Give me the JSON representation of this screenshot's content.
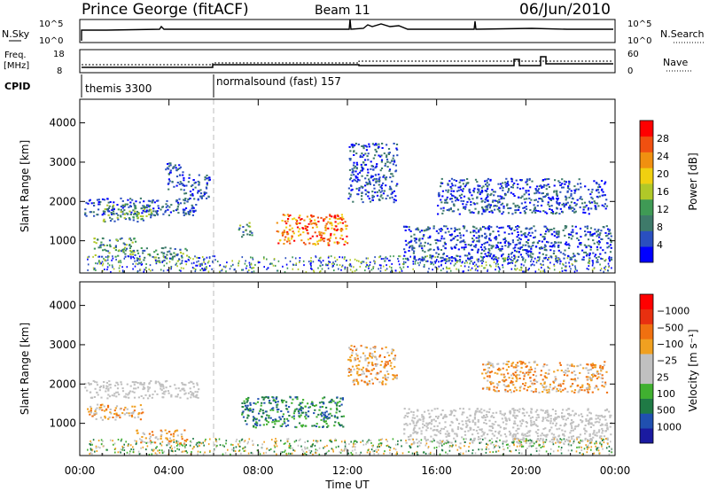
{
  "header": {
    "station": "Prince George (fitACF)",
    "beam": "Beam 11",
    "date": "06/Jun/2010"
  },
  "panels": {
    "nsky": {
      "left_label": "N.Sky",
      "right_label": "N.Search",
      "left_ticks": [
        "10^5",
        "10^0"
      ],
      "right_ticks": [
        "10^5",
        "10^0"
      ]
    },
    "freq": {
      "left_label_1": "Freq.",
      "left_label_2": "[MHz]",
      "right_label": "Nave",
      "left_ticks": [
        "18",
        "8"
      ],
      "right_ticks": [
        "60",
        "0"
      ]
    },
    "cpid": {
      "label": "CPID",
      "segments": [
        {
          "label": "themis 3300",
          "start_hour": 0.0
        },
        {
          "label": "normalsound (fast) 157",
          "start_hour": 6.0
        }
      ]
    }
  },
  "chart_data": [
    {
      "type": "heatmap",
      "name": "power",
      "ylabel": "Slant Range [km]",
      "ylim": [
        180,
        4600
      ],
      "yticks": [
        1000,
        2000,
        3000,
        4000
      ],
      "xlim": [
        0,
        24
      ],
      "colorbar_label": "Power [dB]",
      "colorbar_ticks": [
        4,
        8,
        12,
        16,
        20,
        24,
        28
      ],
      "colorbar_colors": [
        "#0000ff",
        "#2a4fbf",
        "#3e7a6a",
        "#3f9a55",
        "#b0c828",
        "#f0d010",
        "#f09010",
        "#f05010",
        "#ff0000"
      ],
      "features": [
        {
          "x": [
            0.2,
            5.3
          ],
          "y": [
            1650,
            2100
          ],
          "level": "low"
        },
        {
          "x": [
            1.0,
            3.2
          ],
          "y": [
            1500,
            1950
          ],
          "level": "mid"
        },
        {
          "x": [
            0.6,
            2.5
          ],
          "y": [
            600,
            1100
          ],
          "level": "mid"
        },
        {
          "x": [
            2.5,
            4.8
          ],
          "y": [
            500,
            850
          ],
          "level": "mid"
        },
        {
          "x": [
            4.6,
            5.8
          ],
          "y": [
            2050,
            2700
          ],
          "level": "low"
        },
        {
          "x": [
            3.8,
            4.6
          ],
          "y": [
            2300,
            3000
          ],
          "level": "low"
        },
        {
          "x": [
            7.1,
            7.7
          ],
          "y": [
            1100,
            1500
          ],
          "level": "mid"
        },
        {
          "x": [
            8.8,
            12.0
          ],
          "y": [
            900,
            1700
          ],
          "level": "high"
        },
        {
          "x": [
            12.0,
            14.2
          ],
          "y": [
            2000,
            3500
          ],
          "level": "low"
        },
        {
          "x": [
            14.5,
            23.8
          ],
          "y": [
            500,
            1400
          ],
          "level": "low"
        },
        {
          "x": [
            16.0,
            23.6
          ],
          "y": [
            1700,
            2600
          ],
          "level": "low"
        }
      ]
    },
    {
      "type": "heatmap",
      "name": "velocity",
      "ylabel": "Slant Range [km]",
      "ylim": [
        180,
        4600
      ],
      "yticks": [
        1000,
        2000,
        3000,
        4000
      ],
      "xlim": [
        0,
        24
      ],
      "xlabel": "Time UT",
      "xticks": [
        "00:00",
        "04:00",
        "08:00",
        "12:00",
        "16:00",
        "20:00",
        "00:00"
      ],
      "colorbar_label": "Velocity [m s⁻¹]",
      "colorbar_ticks": [
        "1000",
        "500",
        "100",
        "25",
        "−25",
        "−100",
        "−500",
        "−1000"
      ],
      "colorbar_colors": [
        "#1a1aa0",
        "#2050b0",
        "#1f7a45",
        "#40b030",
        "#c0c0c0",
        "#c0c0c0",
        "#f0a020",
        "#f07010",
        "#e83010",
        "#ff0000"
      ],
      "features": [
        {
          "x": [
            0.2,
            5.3
          ],
          "y": [
            1650,
            2100
          ],
          "level": "ground"
        },
        {
          "x": [
            0.3,
            2.8
          ],
          "y": [
            1100,
            1500
          ],
          "level": "negative"
        },
        {
          "x": [
            2.5,
            4.8
          ],
          "y": [
            500,
            850
          ],
          "level": "negative"
        },
        {
          "x": [
            7.2,
            11.8
          ],
          "y": [
            900,
            1700
          ],
          "level": "positive"
        },
        {
          "x": [
            12.0,
            14.2
          ],
          "y": [
            2000,
            3000
          ],
          "level": "negative"
        },
        {
          "x": [
            14.5,
            23.8
          ],
          "y": [
            500,
            1400
          ],
          "level": "ground"
        },
        {
          "x": [
            18.0,
            23.6
          ],
          "y": [
            1800,
            2600
          ],
          "level": "negative"
        }
      ]
    }
  ]
}
